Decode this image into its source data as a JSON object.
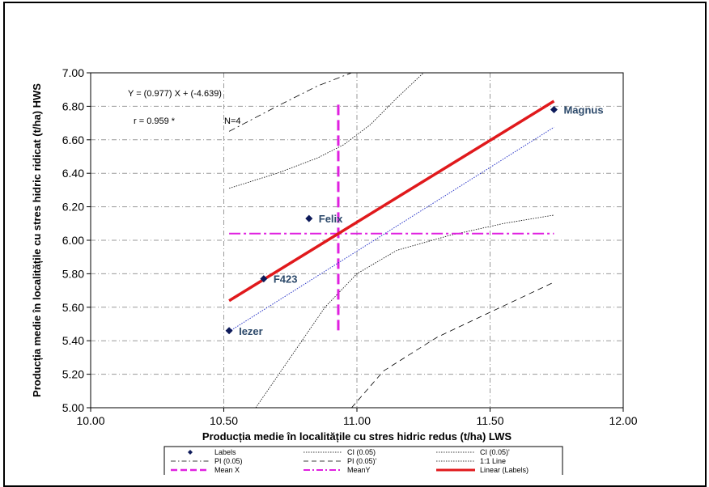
{
  "chart_data": {
    "type": "scatter",
    "xlabel": "Producția medie în localitățile cu stres hidric redus (t/ha) LWS",
    "ylabel": "Producția medie în localitățile cu stres hidric ridicat (t/ha) HWS",
    "xlim": [
      10.0,
      12.0
    ],
    "ylim": [
      5.0,
      7.0
    ],
    "x_ticks": [
      "10.00",
      "10.50",
      "11.00",
      "11.50",
      "12.00"
    ],
    "y_ticks": [
      "5.00",
      "5.20",
      "5.40",
      "5.60",
      "5.80",
      "6.00",
      "6.20",
      "6.40",
      "6.60",
      "6.80",
      "7.00"
    ],
    "grid": true,
    "points": [
      {
        "label": "Magnus",
        "x": 11.74,
        "y": 6.78
      },
      {
        "label": "Felix",
        "x": 10.82,
        "y": 6.13
      },
      {
        "label": "F423",
        "x": 10.65,
        "y": 5.77
      },
      {
        "label": "Iezer",
        "x": 10.52,
        "y": 5.46
      }
    ],
    "equation": "Y = (0.977)  X + (-4.639)",
    "r_text": "r = 0.959  *",
    "n_text": "N=4",
    "regression": {
      "slope": 0.977,
      "intercept": -4.639,
      "x_range": [
        10.52,
        11.74
      ]
    },
    "one_to_one": {
      "x_range": [
        10.52,
        11.74
      ]
    },
    "mean_x": 10.93,
    "mean_y": 6.04,
    "mean_x_y_range": [
      5.45,
      6.81
    ],
    "mean_y_x_range": [
      10.52,
      11.74
    ],
    "ci_upper": [
      [
        10.52,
        6.31
      ],
      [
        10.7,
        6.4
      ],
      [
        10.85,
        6.49
      ],
      [
        10.95,
        6.57
      ],
      [
        11.05,
        6.69
      ],
      [
        11.15,
        6.85
      ],
      [
        11.25,
        7.0
      ]
    ],
    "ci_lower": [
      [
        10.62,
        5.0
      ],
      [
        10.75,
        5.3
      ],
      [
        10.88,
        5.6
      ],
      [
        11.0,
        5.8
      ],
      [
        11.15,
        5.94
      ],
      [
        11.35,
        6.03
      ],
      [
        11.55,
        6.1
      ],
      [
        11.74,
        6.15
      ]
    ],
    "pi_upper": [
      [
        10.52,
        6.65
      ],
      [
        10.7,
        6.8
      ],
      [
        10.85,
        6.92
      ],
      [
        10.98,
        7.0
      ]
    ],
    "pi_lower": [
      [
        10.98,
        5.0
      ],
      [
        11.1,
        5.22
      ],
      [
        11.3,
        5.42
      ],
      [
        11.5,
        5.57
      ],
      [
        11.74,
        5.75
      ]
    ],
    "legend": [
      {
        "label": "Labels",
        "style": "marker"
      },
      {
        "label": "CI (0.05)",
        "style": "dotted"
      },
      {
        "label": "CI (0.05)'",
        "style": "dotted"
      },
      {
        "label": "PI (0.05)",
        "style": "dashdot"
      },
      {
        "label": "PI (0.05)'",
        "style": "dashed"
      },
      {
        "label": "1:1 Line",
        "style": "dotted"
      },
      {
        "label": "Mean X",
        "style": "magenta-dash"
      },
      {
        "label": "MeanY",
        "style": "magenta-dashdot"
      },
      {
        "label": "Linear (Labels)",
        "style": "red"
      }
    ],
    "colors": {
      "points": "#0d1a5a",
      "point_labels": "#2d4a6b",
      "regression": "#e0191c",
      "one_to_one": "#2a36c8",
      "mean": "#e020e0",
      "bounds": "#000000",
      "grid": "#9a9a9a"
    }
  }
}
